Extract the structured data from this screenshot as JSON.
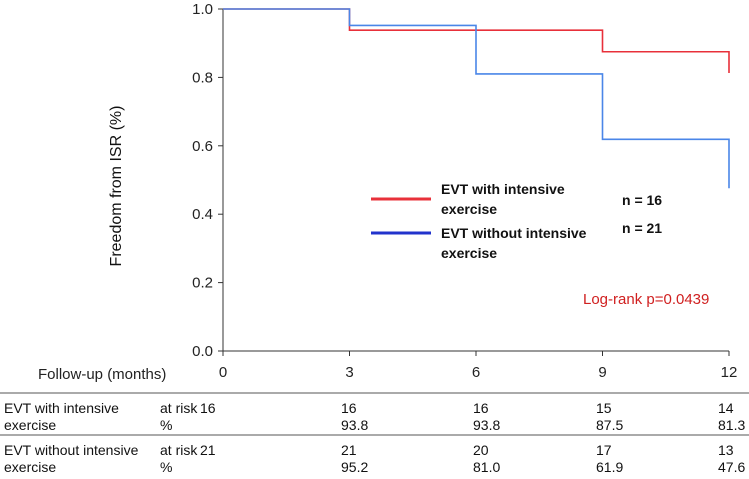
{
  "chart_data": {
    "type": "line",
    "step": true,
    "ylabel": "Freedom from ISR (%)",
    "xlabel": "Follow-up  (months)",
    "xlim": [
      0,
      12
    ],
    "ylim": [
      0,
      1.0
    ],
    "x_ticks": [
      "0",
      "3",
      "6",
      "9",
      "12"
    ],
    "x_tick_values": [
      0,
      3,
      6,
      9,
      12
    ],
    "y_ticks": [
      "0.0",
      "0.2",
      "0.4",
      "0.6",
      "0.8",
      "1.0"
    ],
    "y_tick_values": [
      0,
      0.2,
      0.4,
      0.6,
      0.8,
      1.0
    ],
    "series": [
      {
        "name": "EVT with intensive exercise",
        "name_line1": "EVT with intensive",
        "name_line2": "exercise",
        "n_label": "n = 16",
        "color": "#e8303a",
        "x": [
          0,
          3,
          9,
          12
        ],
        "y": [
          1.0,
          0.938,
          0.875,
          0.813
        ]
      },
      {
        "name": "EVT without intensive exercise",
        "name_line1": "EVT without intensive",
        "name_line2": "exercise",
        "n_label": "n = 21",
        "color": "#4a86e8",
        "x": [
          0,
          3,
          6,
          9,
          12
        ],
        "y": [
          1.0,
          0.952,
          0.81,
          0.619,
          0.476
        ]
      }
    ],
    "legend_colors": [
      "#e8303a",
      "#2233cc"
    ],
    "annotation": "Log-rank p=0.0439"
  },
  "table": {
    "rows": [
      {
        "label_line1": "EVT with intensive",
        "label_line2": "exercise",
        "risk_label": "at risk",
        "pct_label": "%",
        "at_risk": [
          "16",
          "16",
          "16",
          "15",
          "14"
        ],
        "percent": [
          "",
          "93.8",
          "93.8",
          "87.5",
          "81.3"
        ]
      },
      {
        "label_line1": "EVT without intensive",
        "label_line2": "exercise",
        "risk_label": "at risk",
        "pct_label": "%",
        "at_risk": [
          "21",
          "21",
          "20",
          "17",
          "13"
        ],
        "percent": [
          "",
          "95.2",
          "81.0",
          "61.9",
          "47.6"
        ]
      }
    ]
  }
}
